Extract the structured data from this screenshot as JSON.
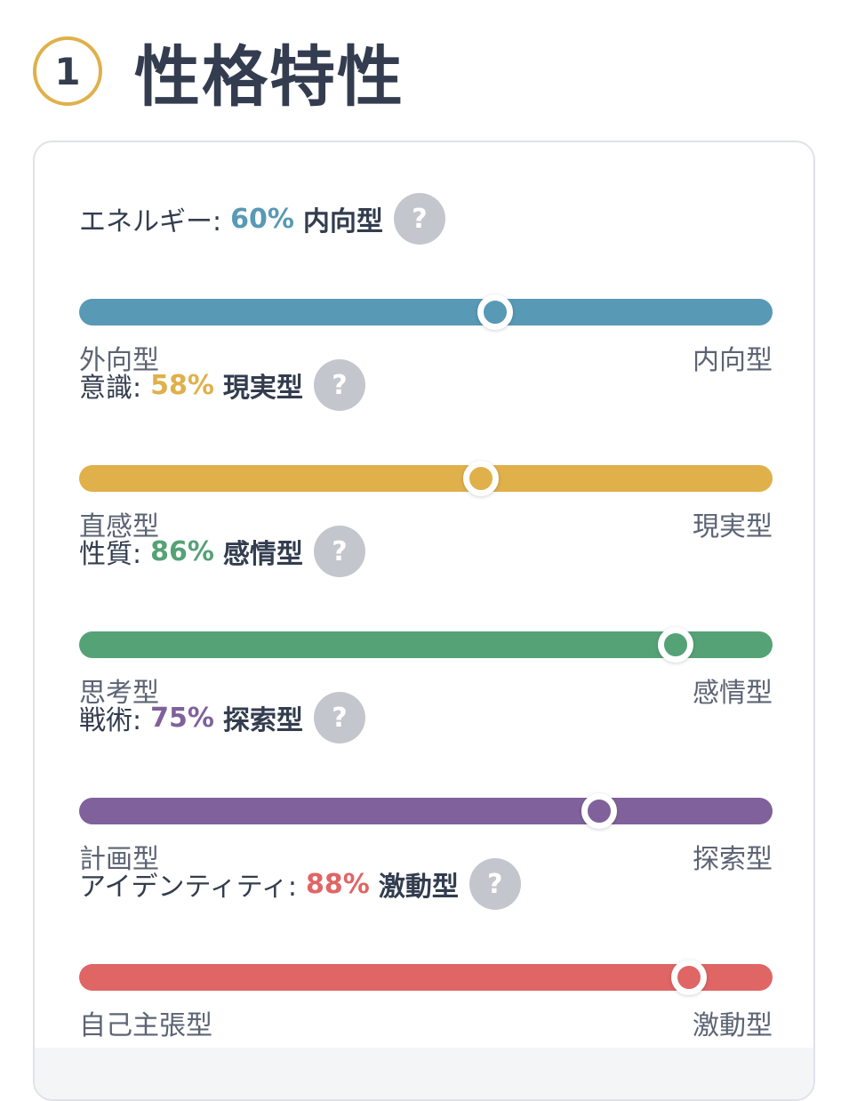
{
  "section": {
    "number": "1",
    "title": "性格特性"
  },
  "traits": [
    {
      "name": "エネルギー:",
      "percent": "60%",
      "value": 0.6,
      "result": "内向型",
      "left_label": "外向型",
      "right_label": "内向型",
      "color": "#5899b5",
      "help": "?"
    },
    {
      "name": "意識:",
      "percent": "58%",
      "value": 0.58,
      "result": "現実型",
      "left_label": "直感型",
      "right_label": "現実型",
      "color": "#e0b04a",
      "help": "?"
    },
    {
      "name": "性質:",
      "percent": "86%",
      "value": 0.86,
      "result": "感情型",
      "left_label": "思考型",
      "right_label": "感情型",
      "color": "#55a276",
      "help": "?"
    },
    {
      "name": "戦術:",
      "percent": "75%",
      "value": 0.75,
      "result": "探索型",
      "left_label": "計画型",
      "right_label": "探索型",
      "color": "#80619b",
      "help": "?"
    },
    {
      "name": "アイデンティティ:",
      "percent": "88%",
      "value": 0.88,
      "result": "激動型",
      "left_label": "自己主張型",
      "right_label": "激動型",
      "color": "#e06565",
      "help": "?"
    }
  ],
  "icons": {
    "help": "question-mark-icon"
  }
}
